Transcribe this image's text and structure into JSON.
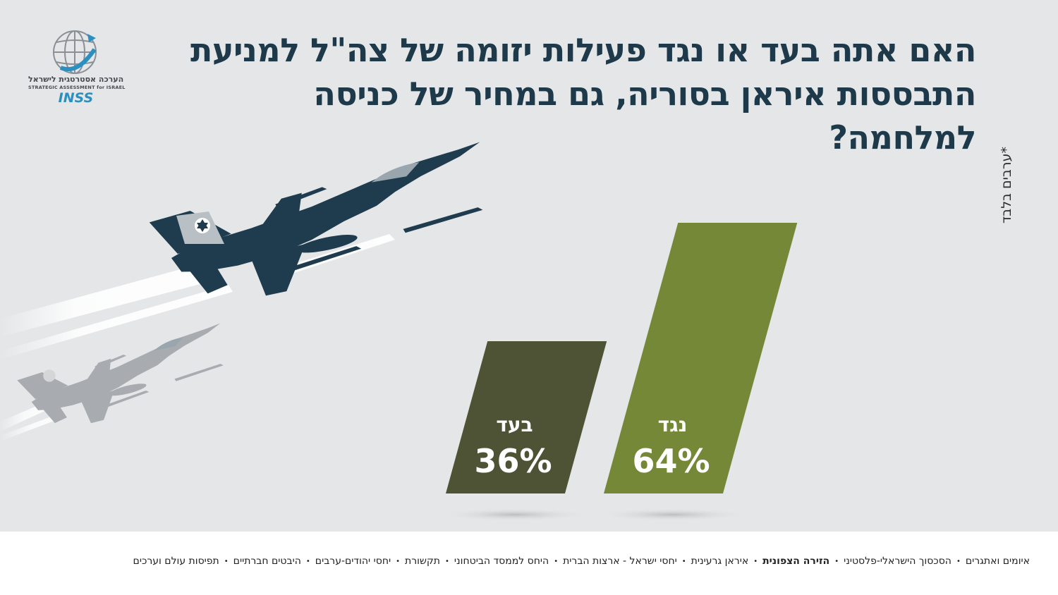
{
  "logo": {
    "text_he": "הערכה אסטרטגית לישראל",
    "text_en": "STRATEGIC ASSESSMENT for ISRAEL",
    "brand": "INSS"
  },
  "title_line1": "האם אתה בעד או נגד פעילות יזומה של צה\"ל למניעת",
  "title_line2": "התבססות איראן בסוריה, גם במחיר של כניסה למלחמה?",
  "footnote": "*ערבים בלבד",
  "chart_data": {
    "type": "bar",
    "categories": [
      "בעד",
      "נגד"
    ],
    "values": [
      36,
      64
    ],
    "value_labels": [
      "36%",
      "64%"
    ],
    "colors": [
      "#4f5335",
      "#758837"
    ],
    "title": "",
    "xlabel": "",
    "ylabel": "",
    "ylim": [
      0,
      100
    ]
  },
  "colors": {
    "background": "#e4e6e8",
    "title": "#1e3a4a",
    "jet": "#1f3b4e"
  },
  "footer": {
    "items": [
      {
        "label": "איומים ואתגרים",
        "active": false
      },
      {
        "label": "הסכסוך הישראלי-פלסטיני",
        "active": false
      },
      {
        "label": "הזירה הצפונית",
        "active": true
      },
      {
        "label": "איראן גרעינית",
        "active": false
      },
      {
        "label": "יחסי ישראל - ארצות הברית",
        "active": false
      },
      {
        "label": "היחס לממסד הביטחוני",
        "active": false
      },
      {
        "label": "תקשורת",
        "active": false
      },
      {
        "label": "יחסי יהודים-ערבים",
        "active": false
      },
      {
        "label": "היבטים חברתיים",
        "active": false
      },
      {
        "label": "תפיסות עולם וערכים",
        "active": false
      }
    ]
  }
}
